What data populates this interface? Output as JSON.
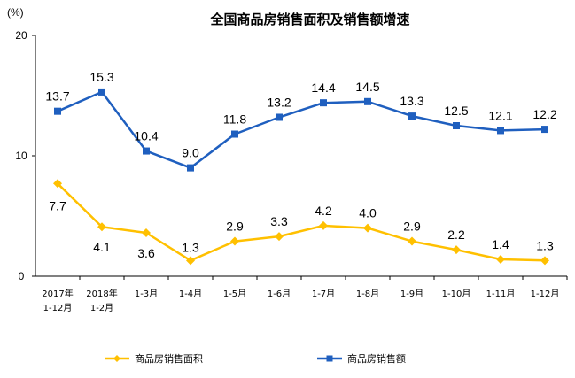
{
  "chart_data": {
    "type": "line",
    "title": "全国商品房销售面积及销售额增速",
    "ylabel": "(%)",
    "ylim": [
      0,
      20
    ],
    "yticks": [
      "0",
      "10",
      "20"
    ],
    "categories": [
      [
        "2017年",
        "1-12月"
      ],
      [
        "2018年",
        "1-2月"
      ],
      [
        "1-3月"
      ],
      [
        "1-4月"
      ],
      [
        "1-5月"
      ],
      [
        "1-6月"
      ],
      [
        "1-7月"
      ],
      [
        "1-8月"
      ],
      [
        "1-9月"
      ],
      [
        "1-10月"
      ],
      [
        "1-11月"
      ],
      [
        "1-12月"
      ]
    ],
    "series": [
      {
        "name": "商品房销售面积",
        "color": "#FFC000",
        "marker": "diamond",
        "values": [
          7.7,
          4.1,
          3.6,
          1.3,
          2.9,
          3.3,
          4.2,
          4.0,
          2.9,
          2.2,
          1.4,
          1.3
        ],
        "labels": [
          "7.7",
          "4.1",
          "3.6",
          "1.3",
          "2.9",
          "3.3",
          "4.2",
          "4.0",
          "2.9",
          "2.2",
          "1.4",
          "1.3"
        ]
      },
      {
        "name": "商品房销售额",
        "color": "#1F5FBF",
        "marker": "square",
        "values": [
          13.7,
          15.3,
          10.4,
          9.0,
          11.8,
          13.2,
          14.4,
          14.5,
          13.3,
          12.5,
          12.1,
          12.2
        ],
        "labels": [
          "13.7",
          "15.3",
          "10.4",
          "9.0",
          "11.8",
          "13.2",
          "14.4",
          "14.5",
          "13.3",
          "12.5",
          "12.1",
          "12.2"
        ]
      }
    ],
    "legend": "bottom",
    "grid": false
  }
}
